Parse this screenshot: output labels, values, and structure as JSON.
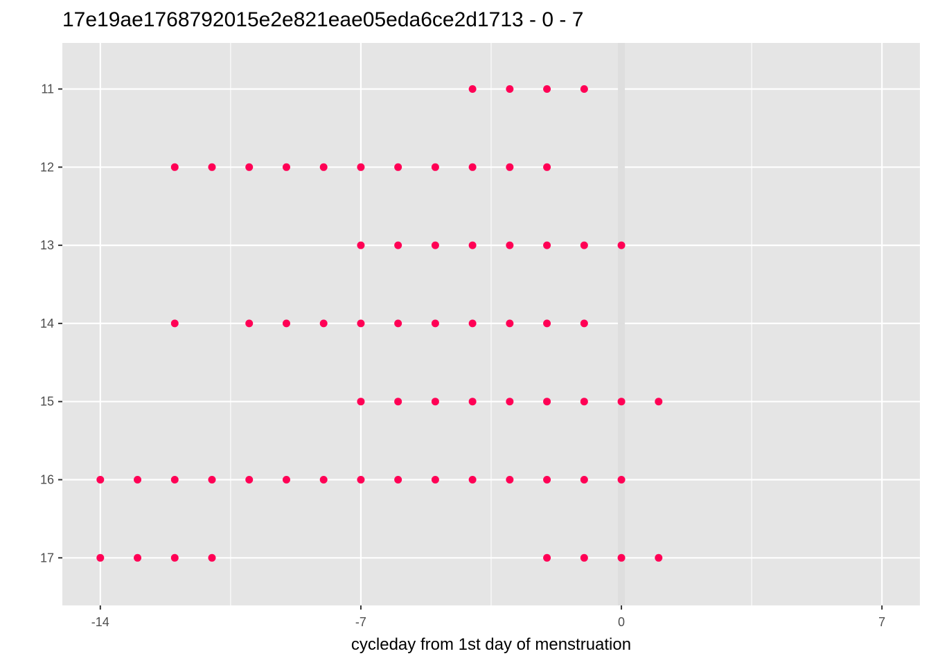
{
  "chart_data": {
    "type": "scatter",
    "title": "17e19ae1768792015e2e821eae05eda6ce2d1713 - 0 - 7",
    "xlabel": "cycleday from 1st day of menstruation",
    "ylabel": "",
    "x_ticks": [
      -14,
      -7,
      0,
      7
    ],
    "x_tick_labels": [
      "-14",
      "-7",
      "0",
      "7"
    ],
    "y_categories": [
      "11",
      "12",
      "13",
      "14",
      "15",
      "16",
      "17"
    ],
    "xlim": [
      -15.02,
      8.02
    ],
    "grid": true,
    "highlight_x": 0,
    "point_color": "#ff0055",
    "panel_color": "#e5e5e5",
    "grid_color": "#ffffff",
    "highlight_color": "#dedede",
    "series": [
      {
        "y": "11",
        "x": [
          -4,
          -3,
          -2,
          -1
        ]
      },
      {
        "y": "12",
        "x": [
          -12,
          -11,
          -10,
          -9,
          -8,
          -7,
          -6,
          -5,
          -4,
          -3,
          -2
        ]
      },
      {
        "y": "13",
        "x": [
          -7,
          -6,
          -5,
          -4,
          -3,
          -2,
          -1,
          0
        ]
      },
      {
        "y": "14",
        "x": [
          -12,
          -10,
          -9,
          -8,
          -7,
          -6,
          -5,
          -4,
          -3,
          -2,
          -1
        ]
      },
      {
        "y": "15",
        "x": [
          -7,
          -6,
          -5,
          -4,
          -3,
          -2,
          -1,
          0,
          1
        ]
      },
      {
        "y": "16",
        "x": [
          -14,
          -13,
          -12,
          -11,
          -10,
          -9,
          -8,
          -7,
          -6,
          -5,
          -4,
          -3,
          -2,
          -1,
          0
        ]
      },
      {
        "y": "17",
        "x": [
          -14,
          -13,
          -12,
          -11,
          -2,
          -1,
          0,
          1
        ]
      }
    ]
  }
}
